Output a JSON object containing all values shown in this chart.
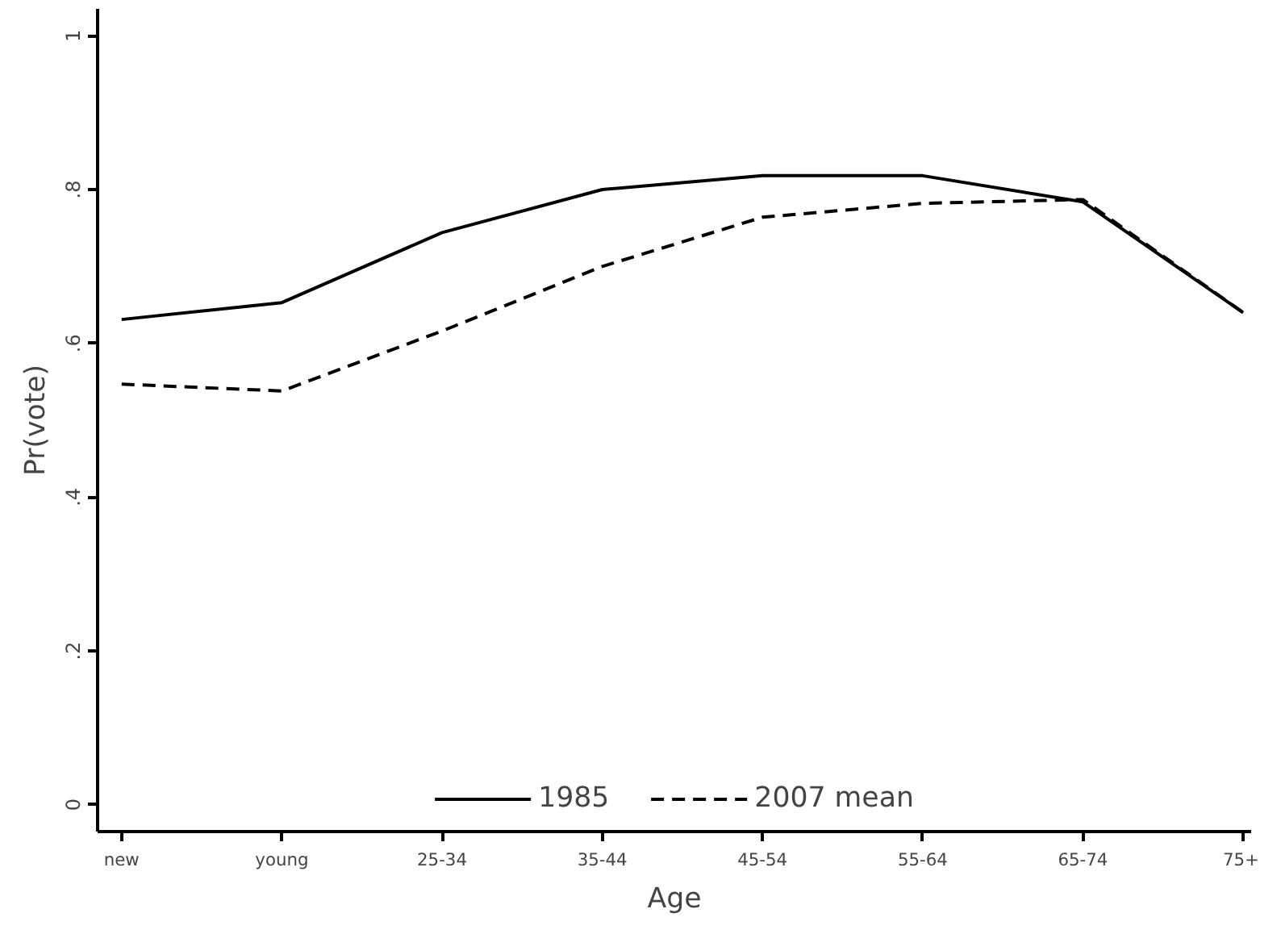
{
  "chart_data": {
    "type": "line",
    "xlabel": "Age",
    "ylabel": "Pr(vote)",
    "categories": [
      "new",
      "young",
      "25-34",
      "35-44",
      "45-54",
      "55-64",
      "65-74",
      "75+"
    ],
    "series": [
      {
        "name": "1985",
        "color": "#000000",
        "line_style": "solid",
        "values": [
          0.631,
          0.653,
          0.744,
          0.8,
          0.818,
          0.818,
          0.784,
          0.64
        ]
      },
      {
        "name": "2007 mean",
        "color": "#000000",
        "line_style": "dashed",
        "values": [
          0.547,
          0.538,
          0.616,
          0.7,
          0.764,
          0.782,
          0.787,
          0.64
        ]
      }
    ],
    "ylim": [
      -0.035,
      1.035
    ],
    "yticks": [
      {
        "value": 0,
        "label": "0"
      },
      {
        "value": 0.2,
        "label": ".2"
      },
      {
        "value": 0.4,
        "label": ".4"
      },
      {
        "value": 0.6,
        "label": ".6"
      },
      {
        "value": 0.8,
        "label": ".8"
      },
      {
        "value": 1,
        "label": "1"
      }
    ],
    "grid": false,
    "legend": "bottom",
    "marker": "none"
  }
}
